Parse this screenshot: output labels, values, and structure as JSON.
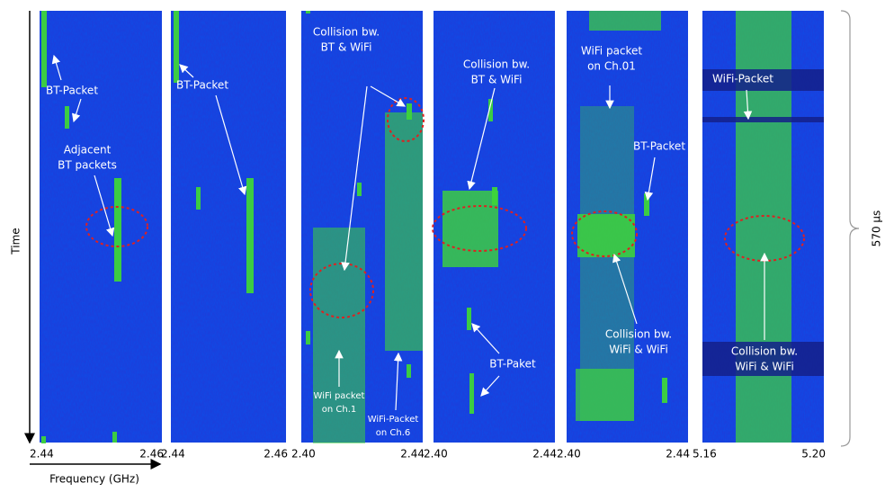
{
  "axes": {
    "time": "Time",
    "frequency": "Frequency (GHz)",
    "duration": "570 µs"
  },
  "panels": [
    {
      "ticks": [
        "2.44",
        "2.46"
      ],
      "annotations": [
        [
          "BT-Packet"
        ],
        [
          "Adjacent",
          "BT packets"
        ]
      ]
    },
    {
      "ticks": [
        "2.44",
        "2.46"
      ],
      "annotations": [
        [
          "BT-Packet"
        ]
      ]
    },
    {
      "ticks": [
        "2.40",
        "2.44"
      ],
      "annotations": [
        [
          "Collision bw.",
          "BT & WiFi"
        ],
        [
          "WiFi packet",
          "on Ch.1"
        ],
        [
          "WiFi-Packet",
          "on Ch.6"
        ]
      ]
    },
    {
      "ticks": [
        "2.40",
        "2.44"
      ],
      "annotations": [
        [
          "Collision bw.",
          "BT & WiFi"
        ],
        [
          "BT-Paket"
        ]
      ]
    },
    {
      "ticks": [
        "2.40",
        "2.44"
      ],
      "annotations": [
        [
          "WiFi packet",
          "on Ch.01"
        ],
        [
          "BT-Packet"
        ],
        [
          "Collision bw.",
          "WiFi & WiFi"
        ]
      ]
    },
    {
      "ticks": [
        "5.16",
        "5.20"
      ],
      "annotations": [
        [
          "WiFi-Packet"
        ],
        [
          "Collision bw.",
          "WiFi & WiFi"
        ]
      ]
    }
  ]
}
